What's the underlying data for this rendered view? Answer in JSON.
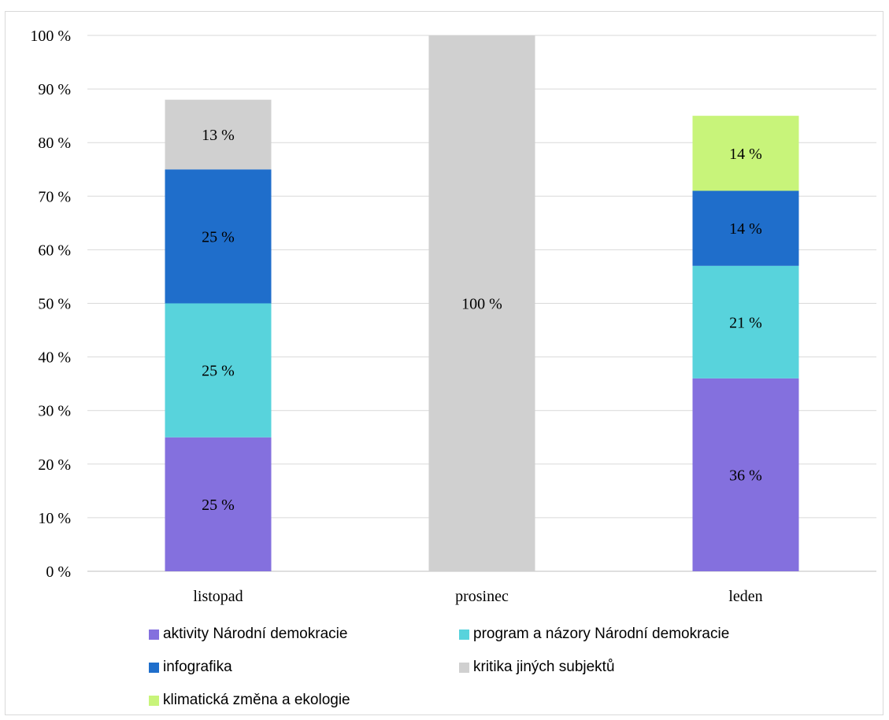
{
  "chart_data": {
    "type": "bar",
    "stacked": true,
    "categories": [
      "listopad",
      "prosinec",
      "leden"
    ],
    "y_ticks": [
      "0 %",
      "10 %",
      "20 %",
      "30 %",
      "40 %",
      "50 %",
      "60 %",
      "70 %",
      "80 %",
      "90 %",
      "100 %"
    ],
    "ylim": [
      0,
      100
    ],
    "grid": true,
    "legend_position": "bottom",
    "series": [
      {
        "name": "aktivity Národní demokracie",
        "color": "#8470de",
        "values": [
          25,
          0,
          36
        ],
        "labels": [
          "25 %",
          "",
          "36 %"
        ]
      },
      {
        "name": "program a názory Národní demokracie",
        "color": "#58d3dc",
        "values": [
          25,
          0,
          21
        ],
        "labels": [
          "25 %",
          "",
          "21 %"
        ]
      },
      {
        "name": "infografika",
        "color": "#1f6ecb",
        "values": [
          25,
          0,
          14
        ],
        "labels": [
          "25 %",
          "",
          "14 %"
        ]
      },
      {
        "name": "kritika jiných subjektů",
        "color": "#d0d0d0",
        "values": [
          13,
          100,
          0
        ],
        "labels": [
          "13 %",
          "100 %",
          ""
        ]
      },
      {
        "name": "klimatická změna a ekologie",
        "color": "#c8f47a",
        "values": [
          0,
          0,
          14
        ],
        "labels": [
          "",
          "",
          "14 %"
        ]
      }
    ]
  }
}
